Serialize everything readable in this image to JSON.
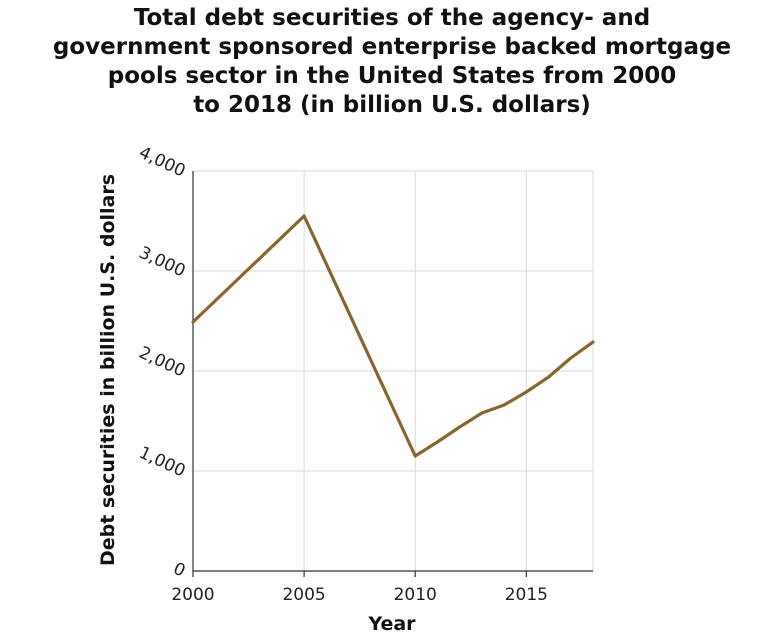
{
  "chart_data": {
    "type": "line",
    "title": "Total debt securities of the agency- and government sponsored enterprise backed mortgage pools sector in the United States from 2000 to 2018 (in billion U.S. dollars)",
    "title_lines": [
      "Total debt securities of the agency- and",
      "government sponsored enterprise backed mortgage",
      "pools sector in the United States from 2000",
      "to 2018 (in billion U.S. dollars)"
    ],
    "xlabel": "Year",
    "ylabel": "Debt securities in billion U.S. dollars",
    "x": [
      2000,
      2005,
      2010,
      2011,
      2012,
      2013,
      2014,
      2015,
      2016,
      2017,
      2018
    ],
    "values": [
      2490,
      3550,
      1150,
      1290,
      1440,
      1580,
      1660,
      1790,
      1940,
      2130,
      2290
    ],
    "xlim": [
      2000,
      2018
    ],
    "ylim": [
      0,
      4000
    ],
    "x_ticks": [
      "2000",
      "2005",
      "2010",
      "2015"
    ],
    "y_ticks": [
      "0",
      "1,000",
      "2,000",
      "3,000",
      "4,000"
    ],
    "line_color": "#85672e",
    "grid": true,
    "legend": "none"
  }
}
